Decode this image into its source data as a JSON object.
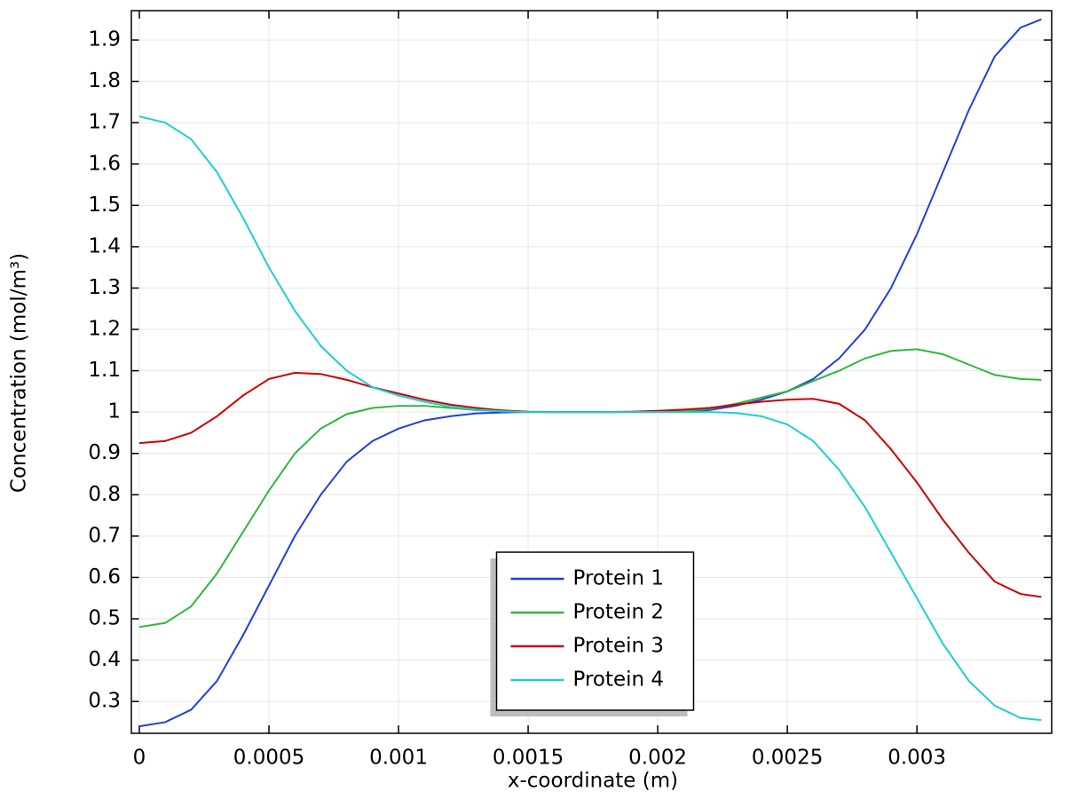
{
  "chart_data": {
    "type": "line",
    "x_label": "x-coordinate (m)",
    "y_label": "Concentration (mol/m³)",
    "x": [
      0,
      0.0001,
      0.0002,
      0.0003,
      0.0004,
      0.0005,
      0.0006,
      0.0007,
      0.0008,
      0.0009,
      0.001,
      0.0011,
      0.0012,
      0.0013,
      0.0014,
      0.0015,
      0.0016,
      0.0017,
      0.0018,
      0.0019,
      0.002,
      0.0021,
      0.0022,
      0.0023,
      0.0024,
      0.0025,
      0.0026,
      0.0027,
      0.0028,
      0.0029,
      0.003,
      0.0031,
      0.0032,
      0.0033,
      0.0034,
      0.00348
    ],
    "series": [
      {
        "name": "Protein 1",
        "color": "#1f3fe0",
        "values": [
          0.24,
          0.25,
          0.28,
          0.35,
          0.46,
          0.58,
          0.7,
          0.8,
          0.88,
          0.93,
          0.96,
          0.98,
          0.99,
          0.997,
          0.999,
          1.0,
          1.0,
          1.0,
          1.0,
          1.0,
          1.0,
          1.0,
          1.005,
          1.015,
          1.03,
          1.05,
          1.08,
          1.13,
          1.2,
          1.3,
          1.43,
          1.58,
          1.73,
          1.86,
          1.93,
          1.95
        ]
      },
      {
        "name": "Protein 2",
        "color": "#2db83a",
        "values": [
          0.48,
          0.49,
          0.53,
          0.61,
          0.71,
          0.81,
          0.9,
          0.96,
          0.995,
          1.01,
          1.015,
          1.015,
          1.01,
          1.005,
          1.002,
          1.0,
          1.0,
          1.0,
          1.0,
          1.0,
          1.001,
          1.002,
          1.008,
          1.02,
          1.035,
          1.05,
          1.075,
          1.1,
          1.13,
          1.148,
          1.152,
          1.14,
          1.115,
          1.09,
          1.08,
          1.078
        ]
      },
      {
        "name": "Protein 3",
        "color": "#cc0000",
        "values": [
          0.925,
          0.93,
          0.95,
          0.99,
          1.04,
          1.08,
          1.095,
          1.092,
          1.078,
          1.06,
          1.045,
          1.03,
          1.018,
          1.01,
          1.004,
          1.001,
          1.0,
          1.0,
          1.0,
          1.001,
          1.003,
          1.006,
          1.01,
          1.018,
          1.025,
          1.03,
          1.032,
          1.02,
          0.98,
          0.91,
          0.83,
          0.74,
          0.66,
          0.59,
          0.56,
          0.553
        ]
      },
      {
        "name": "Protein 4",
        "color": "#1ccfcf",
        "values": [
          1.715,
          1.7,
          1.66,
          1.58,
          1.47,
          1.35,
          1.245,
          1.16,
          1.1,
          1.06,
          1.04,
          1.025,
          1.013,
          1.006,
          1.002,
          1.0,
          1.0,
          1.0,
          1.0,
          1.0,
          1.0,
          1.0,
          1.0,
          0.998,
          0.99,
          0.97,
          0.93,
          0.86,
          0.77,
          0.66,
          0.55,
          0.44,
          0.35,
          0.29,
          0.26,
          0.255
        ]
      }
    ],
    "xlim": [
      -3.08e-05,
      0.00352
    ],
    "ylim": [
      0.223,
      1.971
    ],
    "xticks": [
      0,
      0.0005,
      0.001,
      0.0015,
      0.002,
      0.0025,
      0.003
    ],
    "yticks": [
      0.3,
      0.4,
      0.5,
      0.6,
      0.7,
      0.8,
      0.9,
      1,
      1.1,
      1.2,
      1.3,
      1.4,
      1.5,
      1.6,
      1.7,
      1.8,
      1.9
    ],
    "grid": true,
    "legend_position": "bottom-center"
  }
}
